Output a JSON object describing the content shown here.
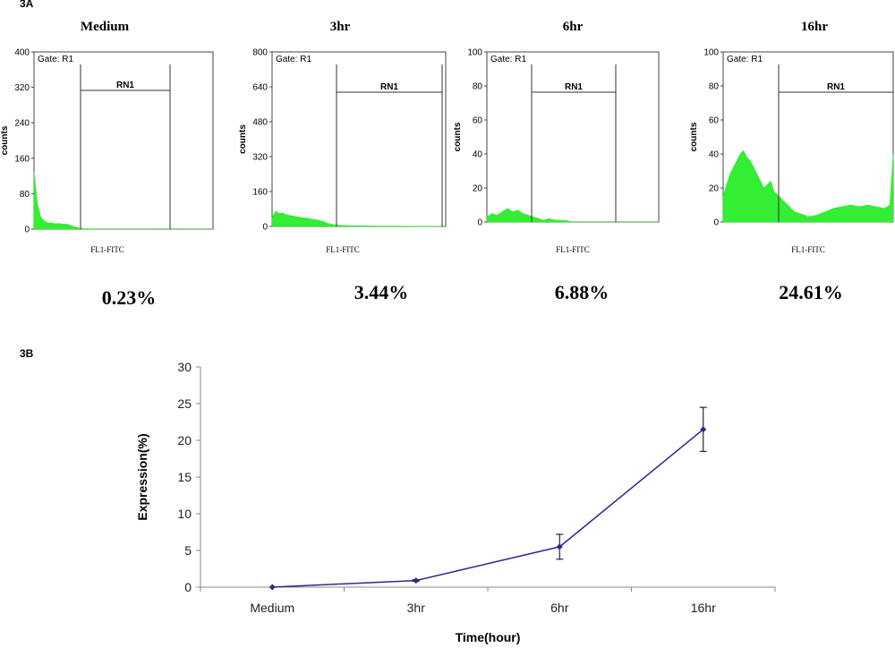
{
  "panel_a_label": "3A",
  "panel_b_label": "3B",
  "chart_data": [
    {
      "type": "area",
      "title": "Medium",
      "xlabel": "FL1-FITC",
      "ylabel": "counts",
      "gate_text": "Gate: R1",
      "region_label": "RN1",
      "percent_text": "0.23%",
      "ylim": [
        0,
        400
      ],
      "y_ticks": [
        "0",
        "80",
        "160",
        "240",
        "320",
        "400"
      ],
      "y_tick_values": [
        0,
        80,
        160,
        240,
        320,
        400
      ],
      "fill_color": "#33ee33",
      "histogram_x": [
        0,
        0.02,
        0.04,
        0.06,
        0.08,
        0.1,
        0.12,
        0.14,
        0.16,
        0.18,
        0.2,
        0.22,
        0.24,
        0.26,
        0.28,
        0.3,
        0.35,
        0.4,
        0.5,
        0.6,
        0.7,
        0.8,
        0.9,
        1.0
      ],
      "histogram_y": [
        130,
        55,
        25,
        18,
        14,
        14,
        12,
        13,
        11,
        12,
        9,
        6,
        4,
        2,
        1,
        1,
        0,
        0,
        0,
        0,
        0,
        0,
        0,
        0
      ]
    },
    {
      "type": "area",
      "title": "3hr",
      "xlabel": "FL1-FITC",
      "ylabel": "counts",
      "gate_text": "Gate: R1",
      "region_label": "RN1",
      "percent_text": "3.44%",
      "ylim": [
        0,
        800
      ],
      "y_ticks": [
        "0",
        "160",
        "320",
        "480",
        "640",
        "800"
      ],
      "y_tick_values": [
        0,
        160,
        320,
        480,
        640,
        800
      ],
      "fill_color": "#33ee33",
      "histogram_x": [
        0,
        0.02,
        0.04,
        0.06,
        0.08,
        0.1,
        0.12,
        0.14,
        0.16,
        0.18,
        0.2,
        0.22,
        0.24,
        0.26,
        0.28,
        0.3,
        0.32,
        0.36,
        0.4,
        0.5,
        0.6,
        0.7,
        0.8,
        0.9,
        1.0
      ],
      "histogram_y": [
        40,
        70,
        60,
        62,
        55,
        50,
        48,
        45,
        42,
        40,
        38,
        35,
        33,
        30,
        26,
        22,
        14,
        8,
        5,
        3,
        2,
        2,
        1,
        1,
        0
      ]
    },
    {
      "type": "area",
      "title": "6hr",
      "xlabel": "FL1-FITC",
      "ylabel": "counts",
      "gate_text": "Gate: R1",
      "region_label": "RN1",
      "percent_text": "6.88%",
      "ylim": [
        0,
        100
      ],
      "y_ticks": [
        "0",
        "20",
        "40",
        "60",
        "80",
        "100"
      ],
      "y_tick_values": [
        0,
        20,
        40,
        60,
        80,
        100
      ],
      "fill_color": "#33ee33",
      "histogram_x": [
        0,
        0.03,
        0.06,
        0.09,
        0.12,
        0.15,
        0.18,
        0.21,
        0.24,
        0.27,
        0.3,
        0.33,
        0.36,
        0.4,
        0.45,
        0.5,
        0.6,
        0.7,
        0.8,
        0.9,
        1.0
      ],
      "histogram_y": [
        3,
        5,
        4,
        6,
        8,
        6,
        7,
        5,
        4,
        3,
        2,
        1,
        2,
        1,
        1,
        0,
        0,
        0,
        0,
        0,
        0
      ]
    },
    {
      "type": "area",
      "title": "16hr",
      "xlabel": "FL1-FITC",
      "ylabel": "counts",
      "gate_text": "Gate: R1",
      "region_label": "RN1",
      "percent_text": "24.61%",
      "ylim": [
        0,
        100
      ],
      "y_ticks": [
        "0",
        "20",
        "40",
        "60",
        "80",
        "100"
      ],
      "y_tick_values": [
        0,
        20,
        40,
        60,
        80,
        100
      ],
      "fill_color": "#33ee33",
      "histogram_x": [
        0,
        0.02,
        0.04,
        0.06,
        0.08,
        0.1,
        0.12,
        0.14,
        0.16,
        0.18,
        0.2,
        0.22,
        0.24,
        0.26,
        0.28,
        0.3,
        0.32,
        0.34,
        0.36,
        0.38,
        0.4,
        0.42,
        0.45,
        0.48,
        0.5,
        0.55,
        0.6,
        0.65,
        0.7,
        0.75,
        0.8,
        0.85,
        0.9,
        0.95,
        0.98,
        1.0
      ],
      "histogram_y": [
        15,
        22,
        28,
        32,
        36,
        40,
        42,
        38,
        36,
        32,
        28,
        24,
        20,
        22,
        24,
        18,
        16,
        14,
        12,
        10,
        8,
        6,
        5,
        4,
        3,
        4,
        6,
        8,
        9,
        10,
        9,
        10,
        9,
        8,
        10,
        40
      ]
    },
    {
      "type": "line",
      "xlabel": "Time(hour)",
      "ylabel": "Expression(%)",
      "categories": [
        "Medium",
        "3hr",
        "6hr",
        "16hr"
      ],
      "series": [
        {
          "values": [
            0,
            0.9,
            5.5,
            21.5
          ],
          "error": [
            0,
            0.1,
            1.7,
            3.0
          ],
          "color": "#2a2a8c"
        }
      ],
      "ylim": [
        0,
        30
      ],
      "y_ticks": [
        "0",
        "5",
        "10",
        "15",
        "20",
        "25",
        "30"
      ],
      "y_tick_values": [
        0,
        5,
        10,
        15,
        20,
        25,
        30
      ],
      "grid": false
    }
  ]
}
